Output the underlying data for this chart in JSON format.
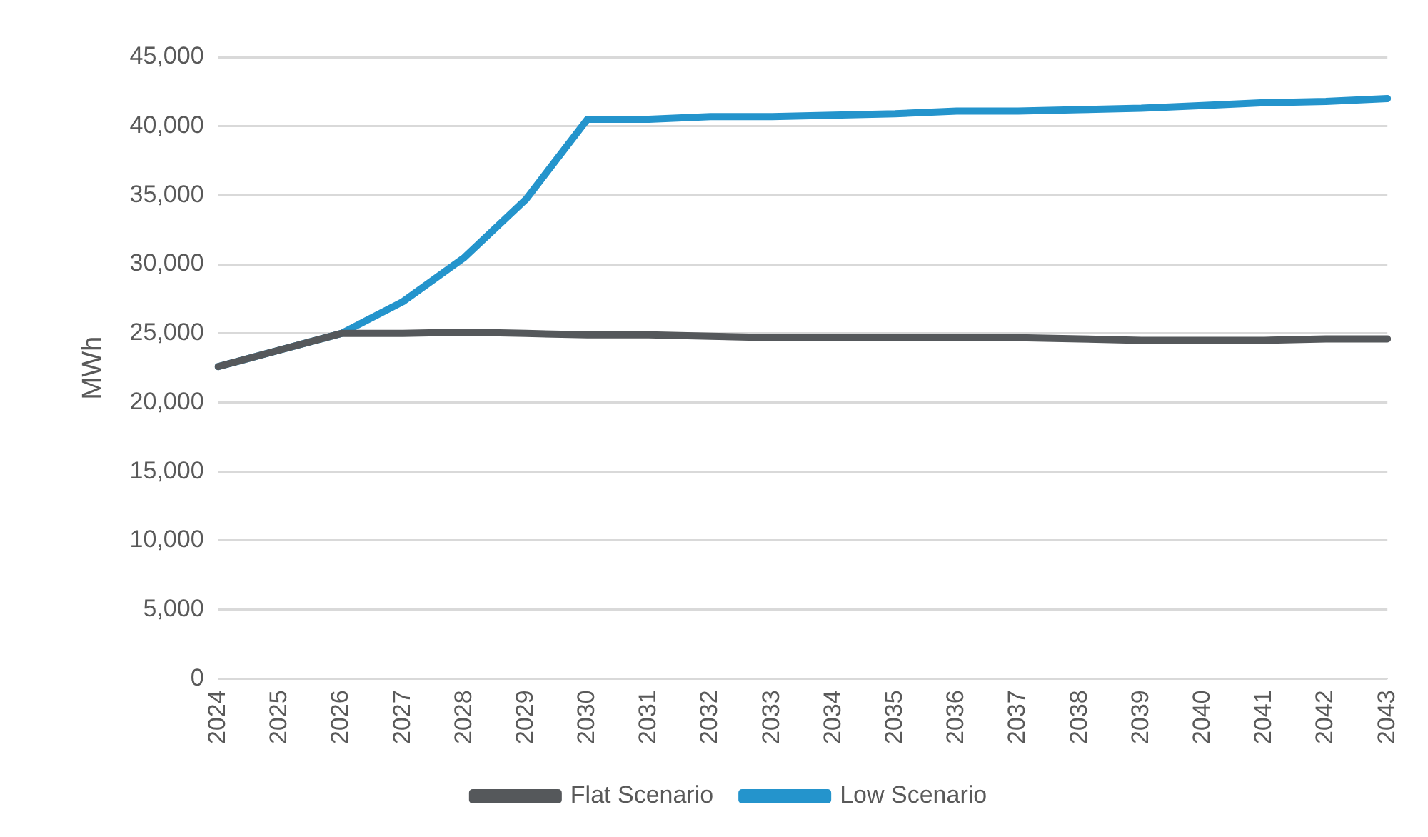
{
  "chart_data": {
    "type": "line",
    "ylabel": "MWh",
    "categories": [
      "2024",
      "2025",
      "2026",
      "2027",
      "2028",
      "2029",
      "2030",
      "2031",
      "2032",
      "2033",
      "2034",
      "2035",
      "2036",
      "2037",
      "2038",
      "2039",
      "2040",
      "2041",
      "2042",
      "2043"
    ],
    "series": [
      {
        "name": "Flat Scenario",
        "color": "#55585b",
        "values": [
          22600,
          23800,
          25000,
          25000,
          25100,
          25000,
          24900,
          24900,
          24800,
          24700,
          24700,
          24700,
          24700,
          24700,
          24600,
          24500,
          24500,
          24500,
          24600,
          24600
        ]
      },
      {
        "name": "Low Scenario",
        "color": "#2494cc",
        "values": [
          22600,
          23800,
          25000,
          27300,
          30500,
          34700,
          40500,
          40500,
          40700,
          40700,
          40800,
          40900,
          41100,
          41100,
          41200,
          41300,
          41500,
          41700,
          41800,
          42000
        ]
      }
    ],
    "ylim": [
      0,
      45000
    ],
    "yticks": [
      0,
      {
        "value": 5000,
        "label": "5,000"
      },
      {
        "value": 10000,
        "label": "10,000"
      },
      {
        "value": 15000,
        "label": "15,000"
      },
      {
        "value": 20000,
        "label": "20,000"
      },
      {
        "value": 25000,
        "label": "25,000"
      },
      {
        "value": 30000,
        "label": "30,000"
      },
      {
        "value": 35000,
        "label": "35,000"
      },
      {
        "value": 40000,
        "label": "40,000"
      },
      {
        "value": 45000,
        "label": "45,000"
      }
    ],
    "grid": "y",
    "legend": "bottom",
    "marker": "none",
    "line_style": "solid"
  }
}
